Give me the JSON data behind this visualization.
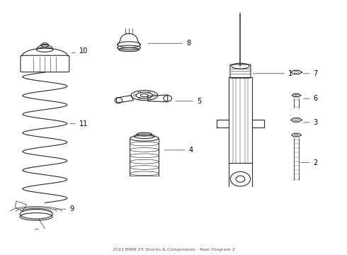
{
  "title": "2022 BMW Z4 Shocks & Components - Rear Diagram 2",
  "bg_color": "#ffffff",
  "line_color": "#2a2a2a",
  "label_color": "#000000",
  "label_data": [
    [
      1,
      0.835,
      0.715,
      0.726,
      0.715
    ],
    [
      2,
      0.908,
      0.36,
      0.865,
      0.36
    ],
    [
      3,
      0.908,
      0.52,
      0.873,
      0.52
    ],
    [
      4,
      0.545,
      0.41,
      0.468,
      0.41
    ],
    [
      5,
      0.568,
      0.605,
      0.5,
      0.605
    ],
    [
      6,
      0.908,
      0.615,
      0.873,
      0.615
    ],
    [
      7,
      0.908,
      0.715,
      0.873,
      0.715
    ],
    [
      8,
      0.538,
      0.835,
      0.42,
      0.835
    ],
    [
      9,
      0.198,
      0.175,
      0.148,
      0.175
    ],
    [
      10,
      0.225,
      0.805,
      0.198,
      0.795
    ],
    [
      11,
      0.225,
      0.515,
      0.192,
      0.515
    ]
  ]
}
